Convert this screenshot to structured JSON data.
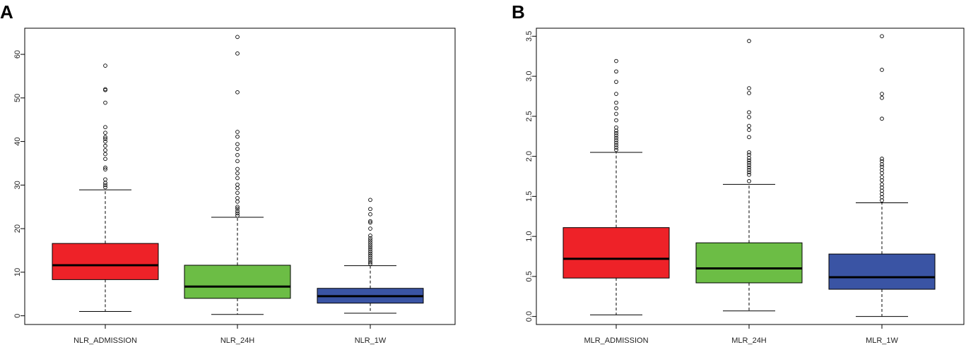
{
  "figure": {
    "panel_labels": [
      "A",
      "B"
    ]
  },
  "chart_data": [
    {
      "type": "boxplot",
      "panel": "A",
      "title": "",
      "xlabel": "",
      "ylabel": "",
      "ylim": [
        -2,
        66
      ],
      "yticks": [
        0,
        10,
        20,
        30,
        40,
        50,
        60
      ],
      "ytick_labels": [
        "0",
        "10",
        "20",
        "30",
        "40",
        "50",
        "60"
      ],
      "grid": false,
      "categories": [
        "NLR_ADMISSION",
        "NLR_24H",
        "NLR_1W"
      ],
      "colors": [
        "#ee2228",
        "#6cbd45",
        "#3a54a4"
      ],
      "boxes": [
        {
          "whisker_low": 1.0,
          "q1": 8.3,
          "median": 11.6,
          "q3": 16.6,
          "whisker_high": 28.9,
          "outliers": [
            29.5,
            30.0,
            30.5,
            31.3,
            33.6,
            34.0,
            36.0,
            37.1,
            38.0,
            39.0,
            40.0,
            40.6,
            41.0,
            42.0,
            43.3,
            48.9,
            51.8,
            52.0,
            57.4
          ]
        },
        {
          "whisker_low": 0.3,
          "q1": 4.0,
          "median": 6.7,
          "q3": 11.6,
          "whisker_high": 22.6,
          "outliers": [
            23.0,
            23.5,
            24.0,
            24.6,
            25.0,
            26.2,
            27.0,
            28.2,
            29.3,
            30.1,
            31.6,
            32.7,
            33.7,
            35.5,
            36.9,
            38.3,
            39.4,
            41.1,
            42.2,
            51.3,
            60.2,
            64.0
          ]
        },
        {
          "whisker_low": 0.6,
          "q1": 2.9,
          "median": 4.5,
          "q3": 6.3,
          "whisker_high": 11.5,
          "outliers": [
            11.9,
            12.3,
            12.8,
            13.3,
            13.8,
            14.3,
            14.8,
            15.3,
            15.8,
            16.3,
            16.8,
            17.3,
            17.8,
            18.4,
            20.0,
            21.4,
            21.7,
            23.3,
            24.5,
            26.6
          ]
        }
      ]
    },
    {
      "type": "boxplot",
      "panel": "B",
      "title": "",
      "xlabel": "",
      "ylabel": "",
      "ylim": [
        -0.1,
        3.6
      ],
      "yticks": [
        0,
        0.5,
        1,
        1.5,
        2,
        2.5,
        3,
        3.5
      ],
      "ytick_labels": [
        "0.0",
        "0.5",
        "1.0",
        "1.5",
        "2.0",
        "2.5",
        "3.0",
        "3.5"
      ],
      "grid": false,
      "categories": [
        "MLR_ADMISSION",
        "MLR_24H",
        "MLR_1W"
      ],
      "colors": [
        "#ee2228",
        "#6cbd45",
        "#3a54a4"
      ],
      "boxes": [
        {
          "whisker_low": 0.02,
          "q1": 0.48,
          "median": 0.72,
          "q3": 1.11,
          "whisker_high": 2.05,
          "outliers": [
            2.08,
            2.11,
            2.14,
            2.17,
            2.2,
            2.23,
            2.26,
            2.29,
            2.32,
            2.36,
            2.45,
            2.53,
            2.6,
            2.67,
            2.78,
            2.93,
            3.06,
            3.19
          ]
        },
        {
          "whisker_low": 0.07,
          "q1": 0.42,
          "median": 0.6,
          "q3": 0.92,
          "whisker_high": 1.65,
          "outliers": [
            1.69,
            1.77,
            1.8,
            1.83,
            1.86,
            1.89,
            1.92,
            1.95,
            1.98,
            2.02,
            2.05,
            2.24,
            2.33,
            2.38,
            2.49,
            2.55,
            2.79,
            2.85,
            3.44
          ]
        },
        {
          "whisker_low": 0.0,
          "q1": 0.34,
          "median": 0.49,
          "q3": 0.78,
          "whisker_high": 1.42,
          "outliers": [
            1.45,
            1.49,
            1.53,
            1.57,
            1.61,
            1.65,
            1.7,
            1.74,
            1.79,
            1.83,
            1.87,
            1.9,
            1.94,
            1.97,
            2.47,
            2.73,
            2.78,
            3.08,
            3.5
          ]
        }
      ]
    }
  ]
}
